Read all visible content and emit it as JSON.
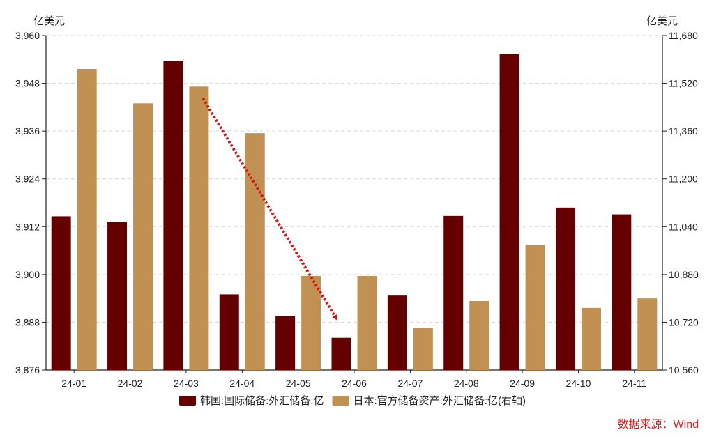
{
  "chart_data": {
    "type": "bar",
    "categories": [
      "24-01",
      "24-02",
      "24-03",
      "24-04",
      "24-05",
      "24-06",
      "24-07",
      "24-08",
      "24-09",
      "24-10",
      "24-11"
    ],
    "series": [
      {
        "name": "韩国:国际储备:外汇储备:亿",
        "axis": "left",
        "color": "#640000",
        "values": [
          3914.6,
          3913.2,
          3953.7,
          3895.0,
          3889.5,
          3884.1,
          3894.7,
          3914.7,
          3955.3,
          3916.8,
          3915.1
        ]
      },
      {
        "name": "日本:官方储备资产:外汇储备:亿(右轴)",
        "axis": "right",
        "color": "#c09153",
        "values": [
          11568,
          11453,
          11509,
          11353,
          10875,
          10875,
          10702,
          10791,
          10978,
          10768,
          10800
        ]
      }
    ],
    "left_axis": {
      "unit": "亿美元",
      "ylim": [
        3876,
        3960
      ],
      "ticks": [
        "3,876",
        "3,888",
        "3,900",
        "3,912",
        "3,924",
        "3,936",
        "3,948",
        "3,960"
      ]
    },
    "right_axis": {
      "unit": "亿美元",
      "ylim": [
        10560,
        11680
      ],
      "ticks": [
        "10,560",
        "10,720",
        "10,880",
        "11,040",
        "11,200",
        "11,360",
        "11,520",
        "11,680"
      ]
    },
    "grid": true,
    "legend_position": "bottom",
    "annotation": {
      "type": "dotted-arrow",
      "color": "#e01010",
      "from": {
        "category": "24-03",
        "value_right": 11470
      },
      "to": {
        "category": "24-06",
        "value_right": 10730
      }
    },
    "source": "数据来源：Wind",
    "source_color": "#d81e1e"
  }
}
